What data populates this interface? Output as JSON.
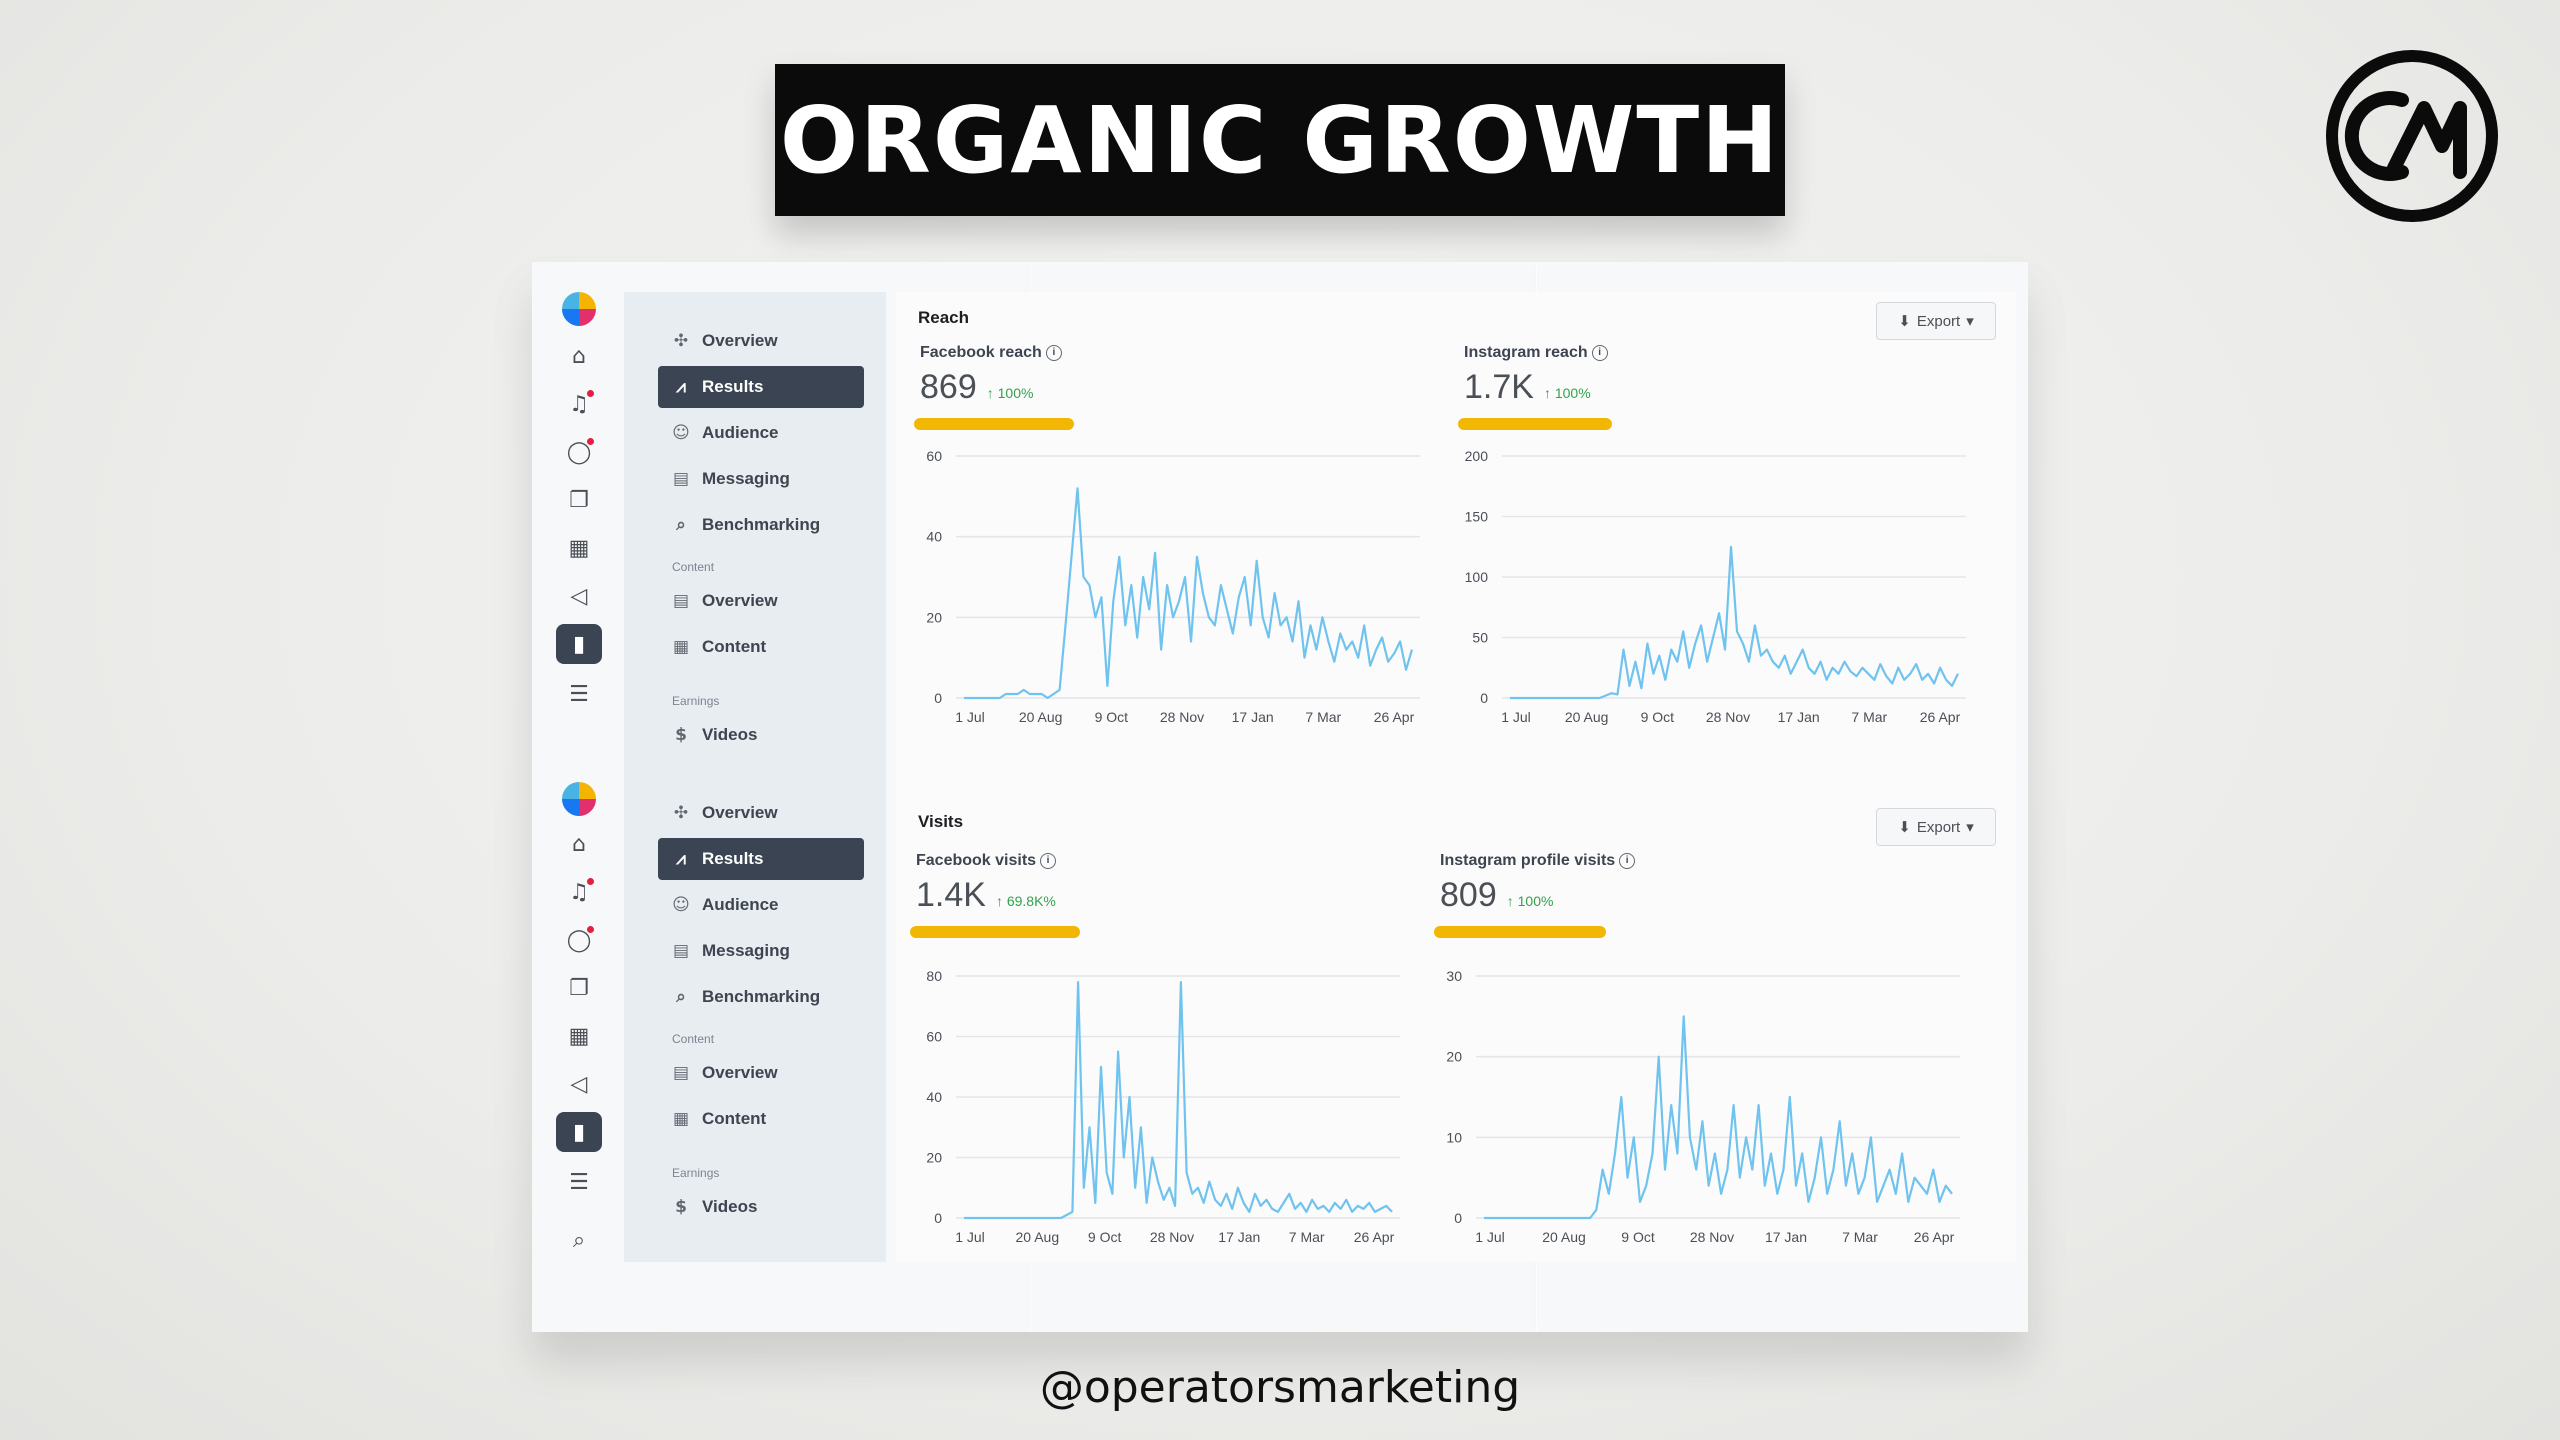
{
  "header": {
    "title": "ORGANIC GROWTH",
    "handle": "@operatorsmarketing",
    "logo_icon": "om-brand-logo-icon"
  },
  "colors": {
    "accent": "#f2b705",
    "line": "#6fc3ee",
    "active_nav": "#3a4452",
    "positive": "#31a24c"
  },
  "nav": {
    "items": [
      "Overview",
      "Results",
      "Audience",
      "Messaging",
      "Benchmarking"
    ],
    "content_section": "Content",
    "content_items": [
      "Overview",
      "Content"
    ],
    "earnings_section": "Earnings",
    "earnings_items": [
      "Videos"
    ],
    "active": "Results"
  },
  "reach": {
    "title": "Reach",
    "export_label": "Export",
    "facebook": {
      "label": "Facebook reach",
      "value": "869",
      "change": "↑ 100%"
    },
    "instagram": {
      "label": "Instagram reach",
      "value": "1.7K",
      "change": "↑ 100%"
    }
  },
  "visits": {
    "title": "Visits",
    "export_label": "Export",
    "facebook": {
      "label": "Facebook visits",
      "value": "1.4K",
      "change": "↑ 69.8K%"
    },
    "instagram": {
      "label": "Instagram profile visits",
      "value": "809",
      "change": "↑ 100%"
    }
  },
  "chart_data": [
    {
      "type": "line",
      "title": "Facebook reach",
      "x_ticks": [
        "1 Jul",
        "20 Aug",
        "9 Oct",
        "28 Nov",
        "17 Jan",
        "7 Mar",
        "26 Apr"
      ],
      "ylim": [
        0,
        60
      ],
      "y_ticks": [
        0,
        20,
        40,
        60
      ],
      "series": [
        {
          "values": [
            0,
            0,
            0,
            0,
            0,
            0,
            0,
            1,
            1,
            1,
            2,
            1,
            1,
            1,
            0,
            1,
            2,
            18,
            35,
            52,
            30,
            28,
            20,
            25,
            3,
            24,
            35,
            18,
            28,
            15,
            30,
            22,
            36,
            12,
            28,
            20,
            24,
            30,
            14,
            35,
            26,
            20,
            18,
            28,
            22,
            16,
            25,
            30,
            18,
            34,
            20,
            15,
            26,
            18,
            20,
            14,
            24,
            10,
            18,
            12,
            20,
            14,
            9,
            16,
            12,
            14,
            10,
            18,
            8,
            12,
            15,
            9,
            11,
            14,
            7,
            12
          ]
        }
      ]
    },
    {
      "type": "line",
      "title": "Instagram reach",
      "x_ticks": [
        "1 Jul",
        "20 Aug",
        "9 Oct",
        "28 Nov",
        "17 Jan",
        "7 Mar",
        "26 Apr"
      ],
      "ylim": [
        0,
        200
      ],
      "y_ticks": [
        0,
        50,
        100,
        150,
        200
      ],
      "series": [
        {
          "values": [
            0,
            0,
            0,
            0,
            0,
            0,
            0,
            0,
            0,
            0,
            0,
            0,
            0,
            0,
            0,
            0,
            2,
            4,
            3,
            40,
            10,
            30,
            8,
            45,
            20,
            35,
            15,
            40,
            30,
            55,
            25,
            45,
            60,
            30,
            50,
            70,
            40,
            125,
            55,
            45,
            30,
            60,
            35,
            40,
            30,
            25,
            35,
            20,
            30,
            40,
            25,
            20,
            30,
            15,
            25,
            20,
            30,
            22,
            18,
            25,
            20,
            15,
            28,
            18,
            12,
            25,
            15,
            20,
            28,
            15,
            20,
            12,
            25,
            15,
            10,
            20
          ]
        }
      ]
    },
    {
      "type": "line",
      "title": "Facebook visits",
      "x_ticks": [
        "1 Jul",
        "20 Aug",
        "9 Oct",
        "28 Nov",
        "17 Jan",
        "7 Mar",
        "26 Apr"
      ],
      "ylim": [
        0,
        80
      ],
      "y_ticks": [
        0,
        20,
        40,
        60,
        80
      ],
      "series": [
        {
          "values": [
            0,
            0,
            0,
            0,
            0,
            0,
            0,
            0,
            0,
            0,
            0,
            0,
            0,
            0,
            0,
            0,
            0,
            0,
            1,
            2,
            78,
            10,
            30,
            5,
            50,
            15,
            8,
            55,
            20,
            40,
            10,
            30,
            5,
            20,
            12,
            6,
            10,
            4,
            78,
            15,
            8,
            10,
            5,
            12,
            6,
            4,
            8,
            3,
            10,
            5,
            2,
            8,
            4,
            6,
            3,
            2,
            5,
            8,
            3,
            5,
            2,
            6,
            3,
            4,
            2,
            5,
            3,
            6,
            2,
            4,
            3,
            5,
            2,
            3,
            4,
            2
          ]
        }
      ]
    },
    {
      "type": "line",
      "title": "Instagram profile visits",
      "x_ticks": [
        "1 Jul",
        "20 Aug",
        "9 Oct",
        "28 Nov",
        "17 Jan",
        "7 Mar",
        "26 Apr"
      ],
      "ylim": [
        0,
        30
      ],
      "y_ticks": [
        0,
        10,
        20,
        30
      ],
      "series": [
        {
          "values": [
            0,
            0,
            0,
            0,
            0,
            0,
            0,
            0,
            0,
            0,
            0,
            0,
            0,
            0,
            0,
            0,
            0,
            0,
            1,
            6,
            3,
            8,
            15,
            5,
            10,
            2,
            4,
            8,
            20,
            6,
            14,
            8,
            25,
            10,
            6,
            12,
            4,
            8,
            3,
            6,
            14,
            5,
            10,
            6,
            14,
            4,
            8,
            3,
            6,
            15,
            4,
            8,
            2,
            5,
            10,
            3,
            6,
            12,
            4,
            8,
            3,
            5,
            10,
            2,
            4,
            6,
            3,
            8,
            2,
            5,
            4,
            3,
            6,
            2,
            4,
            3
          ]
        }
      ]
    }
  ]
}
